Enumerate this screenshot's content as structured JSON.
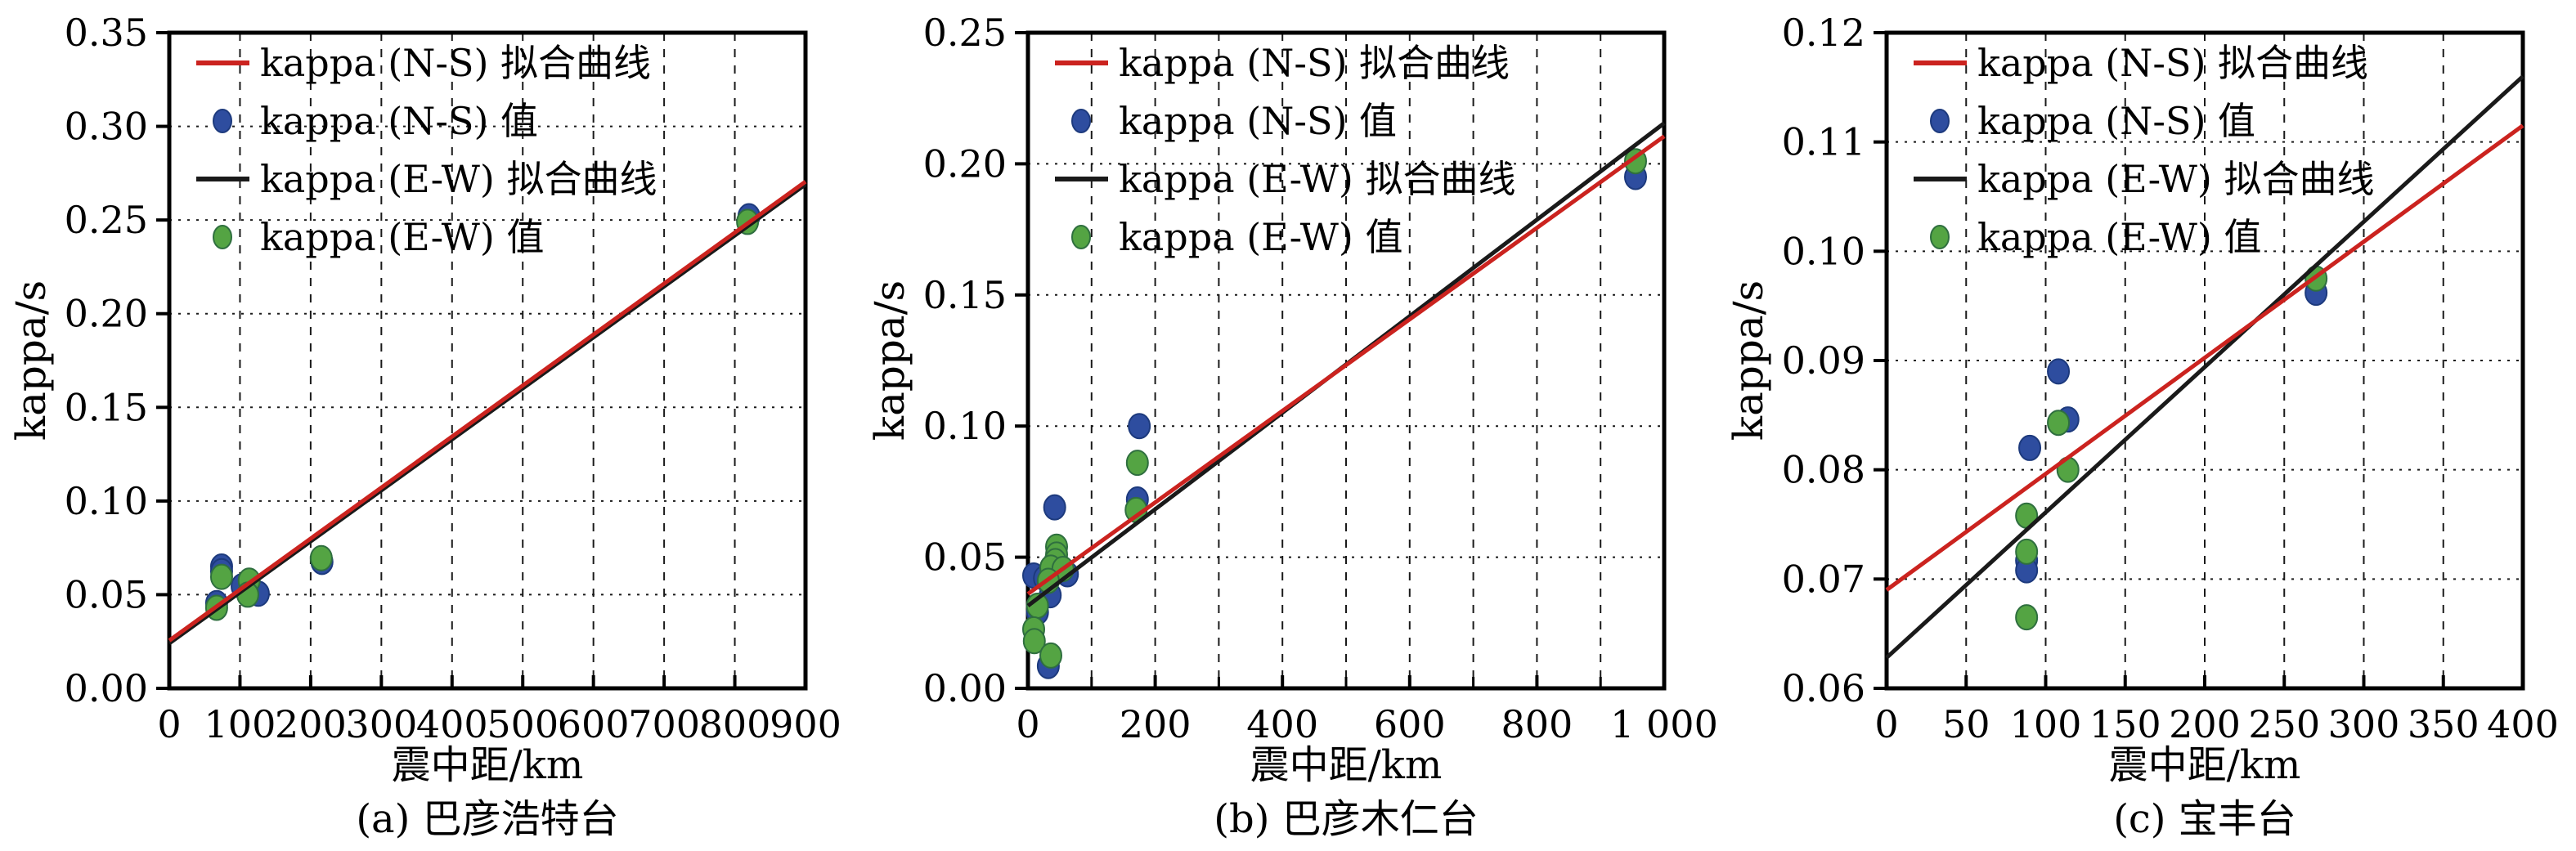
{
  "figure": {
    "background": "#ffffff",
    "description": "Three scatter plots of kappa vs epicentral distance with N-S and E-W linear fits"
  },
  "colors": {
    "ns_line": "#cb231f",
    "ew_line": "#1a1a1a",
    "ns_marker": "#2e4d9f",
    "ns_marker_edge": "#1d3a7d",
    "ew_marker": "#54a443",
    "ew_marker_edge": "#2f6f3f",
    "grid": "#1a1a1a",
    "axis": "#000000",
    "text": "#000000"
  },
  "legend": {
    "items": [
      {
        "type": "line",
        "color": "ns_line",
        "label": "kappa (N-S) 拟合曲线"
      },
      {
        "type": "marker",
        "color": "ns_marker",
        "edge": "ns_marker_edge",
        "label": "kappa (N-S) 值"
      },
      {
        "type": "line",
        "color": "ew_line",
        "label": "kappa (E-W) 拟合曲线"
      },
      {
        "type": "marker",
        "color": "ew_marker",
        "edge": "ew_marker_edge",
        "label": "kappa (E-W) 值"
      }
    ]
  },
  "chart_data": [
    {
      "type": "scatter",
      "caption": "(a) 巴彦浩特台",
      "xlabel": "震中距/km",
      "ylabel": "kappa/s",
      "xlim": [
        0,
        900
      ],
      "ylim": [
        0,
        0.35
      ],
      "grid": true,
      "legend_position": "top-left",
      "xticks": [
        {
          "v": 0,
          "label": "0"
        },
        {
          "v": 100,
          "label": "100"
        },
        {
          "v": 200,
          "label": "200"
        },
        {
          "v": 300,
          "label": "300"
        },
        {
          "v": 400,
          "label": "400"
        },
        {
          "v": 500,
          "label": "500"
        },
        {
          "v": 600,
          "label": "600"
        },
        {
          "v": 700,
          "label": "700"
        },
        {
          "v": 800,
          "label": "800"
        },
        {
          "v": 900,
          "label": "900"
        }
      ],
      "xminor": [],
      "xgrid": [
        100,
        200,
        300,
        400,
        500,
        600,
        700,
        800
      ],
      "yticks": [
        {
          "v": 0.0,
          "label": "0.00"
        },
        {
          "v": 0.05,
          "label": "0.05"
        },
        {
          "v": 0.1,
          "label": "0.10"
        },
        {
          "v": 0.15,
          "label": "0.15"
        },
        {
          "v": 0.2,
          "label": "0.20"
        },
        {
          "v": 0.25,
          "label": "0.25"
        },
        {
          "v": 0.3,
          "label": "0.30"
        },
        {
          "v": 0.35,
          "label": "0.35"
        }
      ],
      "ygrid": [
        0.05,
        0.1,
        0.15,
        0.2,
        0.25,
        0.3
      ],
      "series": [
        {
          "name": "kappa (N-S) 值",
          "kind": "scatter",
          "color": "ns_marker",
          "edge": "ns_marker_edge",
          "points": [
            [
              74,
              0.065
            ],
            [
              74,
              0.0625
            ],
            [
              67,
              0.0455
            ],
            [
              103,
              0.0545
            ],
            [
              126,
              0.0505
            ],
            [
              216,
              0.0675
            ],
            [
              820,
              0.252
            ]
          ]
        },
        {
          "name": "kappa (E-W) 值",
          "kind": "scatter",
          "color": "ew_marker",
          "edge": "ew_marker_edge",
          "points": [
            [
              74,
              0.0595
            ],
            [
              67,
              0.043
            ],
            [
              113,
              0.0575
            ],
            [
              111,
              0.05
            ],
            [
              215,
              0.0695
            ],
            [
              818,
              0.249
            ]
          ]
        },
        {
          "name": "kappa (E-W) 拟合曲线",
          "kind": "line",
          "color": "ew_line",
          "points": [
            [
              0,
              0.024
            ],
            [
              900,
              0.269
            ]
          ]
        },
        {
          "name": "kappa (N-S) 拟合曲线",
          "kind": "line",
          "color": "ns_line",
          "points": [
            [
              0,
              0.0255
            ],
            [
              900,
              0.2705
            ]
          ]
        }
      ]
    },
    {
      "type": "scatter",
      "caption": "(b) 巴彦木仁台",
      "xlabel": "震中距/km",
      "ylabel": "kappa/s",
      "xlim": [
        0,
        1000
      ],
      "ylim": [
        0,
        0.25
      ],
      "grid": true,
      "legend_position": "top-left",
      "xticks": [
        {
          "v": 0,
          "label": "0"
        },
        {
          "v": 200,
          "label": "200"
        },
        {
          "v": 400,
          "label": "400"
        },
        {
          "v": 600,
          "label": "600"
        },
        {
          "v": 800,
          "label": "800"
        },
        {
          "v": 1000,
          "label": "1 000"
        }
      ],
      "xminor": [
        100,
        300,
        500,
        700,
        900
      ],
      "xgrid": [
        100,
        200,
        300,
        400,
        500,
        600,
        700,
        800,
        900
      ],
      "yticks": [
        {
          "v": 0.0,
          "label": "0.00"
        },
        {
          "v": 0.05,
          "label": "0.05"
        },
        {
          "v": 0.1,
          "label": "0.10"
        },
        {
          "v": 0.15,
          "label": "0.15"
        },
        {
          "v": 0.2,
          "label": "0.20"
        },
        {
          "v": 0.25,
          "label": "0.25"
        }
      ],
      "ygrid": [
        0.05,
        0.1,
        0.15,
        0.2
      ],
      "series": [
        {
          "name": "kappa (N-S) 值",
          "kind": "scatter",
          "color": "ns_marker",
          "edge": "ns_marker_edge",
          "points": [
            [
              9,
              0.043
            ],
            [
              26,
              0.042
            ],
            [
              62,
              0.0435
            ],
            [
              35,
              0.0355
            ],
            [
              15,
              0.029
            ],
            [
              32,
              0.0085
            ],
            [
              42,
              0.069
            ],
            [
              172,
              0.072
            ],
            [
              175,
              0.1
            ],
            [
              955,
              0.195
            ]
          ]
        },
        {
          "name": "kappa (E-W) 值",
          "kind": "scatter",
          "color": "ew_marker",
          "edge": "ew_marker_edge",
          "points": [
            [
              45,
              0.054
            ],
            [
              45,
              0.051
            ],
            [
              43,
              0.0485
            ],
            [
              36,
              0.046
            ],
            [
              55,
              0.0455
            ],
            [
              32,
              0.041
            ],
            [
              15,
              0.0315
            ],
            [
              9,
              0.0225
            ],
            [
              10,
              0.018
            ],
            [
              36,
              0.0125
            ],
            [
              170,
              0.068
            ],
            [
              172,
              0.086
            ],
            [
              955,
              0.201
            ]
          ]
        },
        {
          "name": "kappa (E-W) 拟合曲线",
          "kind": "line",
          "color": "ew_line",
          "points": [
            [
              0,
              0.0315
            ],
            [
              1000,
              0.2155
            ]
          ]
        },
        {
          "name": "kappa (N-S) 拟合曲线",
          "kind": "line",
          "color": "ns_line",
          "points": [
            [
              0,
              0.036
            ],
            [
              1000,
              0.2105
            ]
          ]
        }
      ]
    },
    {
      "type": "scatter",
      "caption": "(c) 宝丰台",
      "xlabel": "震中距/km",
      "ylabel": "kappa/s",
      "xlim": [
        0,
        400
      ],
      "ylim": [
        0.06,
        0.12
      ],
      "grid": true,
      "legend_position": "top-left",
      "xticks": [
        {
          "v": 0,
          "label": "0"
        },
        {
          "v": 50,
          "label": "50"
        },
        {
          "v": 100,
          "label": "100"
        },
        {
          "v": 150,
          "label": "150"
        },
        {
          "v": 200,
          "label": "200"
        },
        {
          "v": 250,
          "label": "250"
        },
        {
          "v": 300,
          "label": "300"
        },
        {
          "v": 350,
          "label": "350"
        },
        {
          "v": 400,
          "label": "400"
        }
      ],
      "xminor": [],
      "xgrid": [
        50,
        100,
        150,
        200,
        250,
        300,
        350
      ],
      "yticks": [
        {
          "v": 0.06,
          "label": "0.06"
        },
        {
          "v": 0.07,
          "label": "0.07"
        },
        {
          "v": 0.08,
          "label": "0.08"
        },
        {
          "v": 0.09,
          "label": "0.09"
        },
        {
          "v": 0.1,
          "label": "0.10"
        },
        {
          "v": 0.11,
          "label": "0.11"
        },
        {
          "v": 0.12,
          "label": "0.12"
        }
      ],
      "ygrid": [
        0.07,
        0.08,
        0.09,
        0.1,
        0.11
      ],
      "series": [
        {
          "name": "kappa (N-S) 值",
          "kind": "scatter",
          "color": "ns_marker",
          "edge": "ns_marker_edge",
          "points": [
            [
              90,
              0.082
            ],
            [
              108,
              0.089
            ],
            [
              114,
              0.0846
            ],
            [
              88,
              0.0717
            ],
            [
              88,
              0.0708
            ],
            [
              270,
              0.0962
            ]
          ]
        },
        {
          "name": "kappa (E-W) 值",
          "kind": "scatter",
          "color": "ew_marker",
          "edge": "ew_marker_edge",
          "points": [
            [
              108,
              0.0843
            ],
            [
              114,
              0.08
            ],
            [
              88,
              0.0758
            ],
            [
              88,
              0.0725
            ],
            [
              88,
              0.0665
            ],
            [
              270,
              0.0975
            ]
          ]
        },
        {
          "name": "kappa (E-W) 拟合曲线",
          "kind": "line",
          "color": "ew_line",
          "points": [
            [
              0,
              0.0628
            ],
            [
              400,
              0.116
            ]
          ]
        },
        {
          "name": "kappa (N-S) 拟合曲线",
          "kind": "line",
          "color": "ns_line",
          "points": [
            [
              0,
              0.069
            ],
            [
              400,
              0.1115
            ]
          ]
        }
      ]
    }
  ]
}
